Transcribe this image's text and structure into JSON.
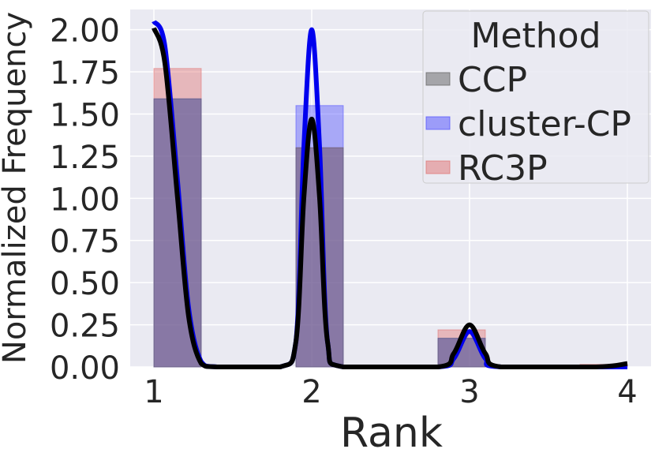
{
  "chart_data": {
    "type": "bar",
    "title": "",
    "xlabel": "Rank",
    "ylabel": "Normalized Frequency",
    "xlim": [
      0.85,
      4.15
    ],
    "ylim": [
      0,
      2.12
    ],
    "grid": true,
    "xticks": [
      1,
      2,
      3,
      4
    ],
    "yticks": [
      "0.00",
      "0.25",
      "0.50",
      "0.75",
      "1.00",
      "1.25",
      "1.50",
      "1.75",
      "2.00"
    ],
    "bar_width": 0.3,
    "legend": {
      "title": "Method",
      "placement": "top-right",
      "entries": [
        "CCP",
        "cluster-CP",
        "RC3P"
      ]
    },
    "series": [
      {
        "name": "RC3P",
        "color": "#e07070",
        "bars": [
          {
            "x_left": 1.0,
            "value": 1.77
          },
          {
            "x_left": 1.9,
            "value": 1.3
          },
          {
            "x_left": 2.8,
            "value": 0.22
          },
          {
            "x_left": 3.7,
            "value": 0.015
          }
        ],
        "kde": [
          [
            1.0,
            2.02
          ],
          [
            1.12,
            1.2
          ],
          [
            1.25,
            0.08
          ],
          [
            1.4,
            0.0
          ],
          [
            1.75,
            0.0
          ],
          [
            1.88,
            0.1
          ],
          [
            1.95,
            0.9
          ],
          [
            2.0,
            1.47
          ],
          [
            2.05,
            0.9
          ],
          [
            2.12,
            0.1
          ],
          [
            2.2,
            0.0
          ],
          [
            2.8,
            0.0
          ],
          [
            2.9,
            0.1
          ],
          [
            3.0,
            0.25
          ],
          [
            3.1,
            0.1
          ],
          [
            3.2,
            0.0
          ],
          [
            3.7,
            0.0
          ],
          [
            4.0,
            0.02
          ]
        ]
      },
      {
        "name": "cluster-CP",
        "color": "#4d4dff",
        "bars": [
          {
            "x_left": 1.0,
            "value": 1.59
          },
          {
            "x_left": 1.9,
            "value": 1.55
          },
          {
            "x_left": 2.8,
            "value": 0.17
          },
          {
            "x_left": 3.7,
            "value": 0.0
          }
        ],
        "kde": [
          [
            1.0,
            2.05
          ],
          [
            1.07,
            1.9
          ],
          [
            1.15,
            1.1
          ],
          [
            1.22,
            0.35
          ],
          [
            1.3,
            0.03
          ],
          [
            1.4,
            0.0
          ],
          [
            1.8,
            0.0
          ],
          [
            1.9,
            0.15
          ],
          [
            1.95,
            1.3
          ],
          [
            2.0,
            2.0
          ],
          [
            2.05,
            1.3
          ],
          [
            2.1,
            0.15
          ],
          [
            2.2,
            0.0
          ],
          [
            2.8,
            0.0
          ],
          [
            2.9,
            0.05
          ],
          [
            3.0,
            0.21
          ],
          [
            3.1,
            0.05
          ],
          [
            3.2,
            0.0
          ],
          [
            4.0,
            0.0
          ]
        ]
      },
      {
        "name": "CCP",
        "color": "#606060",
        "bars": [
          {
            "x_left": 1.0,
            "value": 1.59
          },
          {
            "x_left": 1.9,
            "value": 1.3
          },
          {
            "x_left": 2.8,
            "value": 0.17
          },
          {
            "x_left": 3.7,
            "value": 0.0
          }
        ],
        "kde": [
          [
            1.0,
            2.01
          ],
          [
            1.07,
            1.8
          ],
          [
            1.15,
            1.0
          ],
          [
            1.22,
            0.3
          ],
          [
            1.3,
            0.02
          ],
          [
            1.4,
            0.0
          ],
          [
            1.8,
            0.0
          ],
          [
            1.9,
            0.15
          ],
          [
            1.95,
            1.0
          ],
          [
            2.0,
            1.47
          ],
          [
            2.05,
            1.0
          ],
          [
            2.1,
            0.15
          ],
          [
            2.2,
            0.0
          ],
          [
            2.8,
            0.0
          ],
          [
            2.9,
            0.08
          ],
          [
            3.0,
            0.25
          ],
          [
            3.1,
            0.08
          ],
          [
            3.2,
            0.0
          ],
          [
            3.8,
            0.0
          ],
          [
            4.0,
            0.02
          ]
        ]
      }
    ]
  },
  "colors": {
    "background": "#eaeaf2",
    "grid": "#ffffff",
    "overlap": "#7b5480"
  }
}
